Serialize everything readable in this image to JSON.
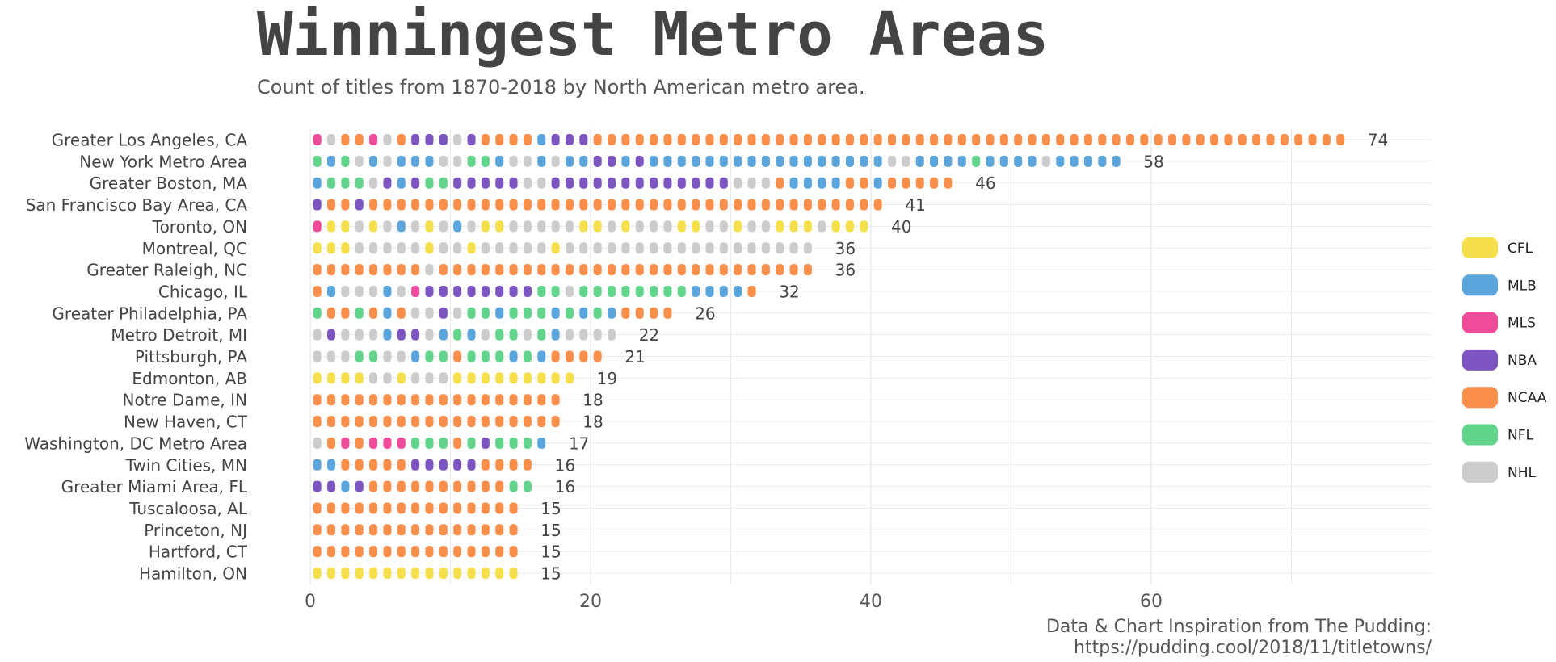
{
  "title": "Winningest Metro Areas",
  "subtitle": "Count of titles from 1870-2018 by North American metro area.",
  "caption": {
    "line1": "Data & Chart Inspiration from The Pudding:",
    "line2": "https://pudding.cool/2018/11/titletowns/"
  },
  "chart_data": {
    "type": "bar",
    "xlim": [
      0,
      80
    ],
    "x_ticks": [
      0,
      20,
      40,
      60
    ],
    "grid": true,
    "legend_position": "right",
    "legend": [
      {
        "name": "CFL",
        "color": "#f5df4d"
      },
      {
        "name": "MLB",
        "color": "#5aa5dc"
      },
      {
        "name": "MLS",
        "color": "#ee4b9a"
      },
      {
        "name": "NBA",
        "color": "#7d55c0"
      },
      {
        "name": "NCAA",
        "color": "#f98f4a"
      },
      {
        "name": "NFL",
        "color": "#62d48c"
      },
      {
        "name": "NHL",
        "color": "#cccccc"
      }
    ],
    "categories": [
      "Greater Los Angeles, CA",
      "New York Metro Area",
      "Greater Boston, MA",
      "San Francisco Bay Area, CA",
      "Toronto, ON",
      "Montreal, QC",
      "Greater Raleigh, NC",
      "Chicago, IL",
      "Greater Philadelphia, PA",
      "Metro Detroit, MI",
      "Pittsburgh, PA",
      "Edmonton, AB",
      "Notre Dame, IN",
      "New Haven, CT",
      "Washington, DC Metro Area",
      "Twin Cities, MN",
      "Greater Miami Area, FL",
      "Tuscaloosa, AL",
      "Princeton, NJ",
      "Hartford, CT",
      "Hamilton, ON"
    ],
    "values": [
      74,
      58,
      46,
      41,
      40,
      36,
      36,
      32,
      26,
      22,
      21,
      19,
      18,
      18,
      17,
      16,
      16,
      15,
      15,
      15,
      15
    ],
    "title_sequences": [
      "MLS NHL NCAA NCAA MLS NHL NCAA NBA NBA NBA NHL NBA NCAA NCAA NCAA NCAA MLB NBA NBA NBA NCAA NCAA NCAA NCAA NCAA NCAA NCAA NCAA NCAA NCAA NCAA NCAA NCAA NCAA NCAA NCAA NCAA NCAA NCAA NCAA NCAA NCAA NCAA NCAA NCAA NCAA NCAA NCAA NCAA NCAA NCAA NCAA NCAA NCAA NCAA NCAA NCAA NCAA NCAA NCAA NCAA NCAA NCAA NCAA NCAA NCAA NCAA NCAA NCAA NCAA NCAA NCAA NCAA NCAA",
      "NFL MLB NFL NHL MLB NHL MLB MLB MLB NHL NHL NFL NFL MLB NHL NHL MLB NHL MLB MLB NBA NBA MLB NBA MLB MLB MLB MLB MLB MLB MLB MLB MLB MLB MLB MLB MLB MLB MLB MLB MLB NHL NHL MLB MLB MLB MLB NFL MLB MLB MLB MLB NHL MLB MLB MLB MLB MLB",
      "MLB NFL NFL NFL NHL NBA MLB NBA NFL NFL NBA NBA NBA NBA NBA NHL NHL NBA NBA NBA NBA NBA NBA NBA NBA NBA NBA NBA NBA NBA NHL NHL NHL NCAA MLB MLB MLB MLB NCAA NCAA MLB NCAA NCAA NCAA NCAA NCAA",
      "NBA NCAA NCAA NBA NCAA NCAA NCAA NCAA NCAA NCAA NCAA NCAA NCAA NCAA NCAA NCAA NCAA NCAA NCAA NCAA NCAA NCAA NCAA NCAA NCAA NCAA NCAA NCAA NCAA NCAA NCAA NCAA NCAA NCAA NCAA NCAA NCAA NCAA NCAA NCAA NCAA",
      "MLS CFL CFL NHL CFL NHL MLB NHL CFL NHL MLB NHL CFL CFL NHL NHL NHL NHL NHL CFL CFL NHL CFL NHL NHL NHL CFL CFL NHL NHL CFL NHL NHL CFL CFL CFL NHL CFL CFL CFL",
      "CFL CFL CFL NHL NHL NHL NHL NHL CFL NHL NHL CFL NHL NHL NHL NHL NHL CFL NHL NHL NHL NHL NHL NHL NHL NHL NHL NHL NHL NHL NHL NHL NHL NHL NHL NHL",
      "NCAA NCAA NCAA NCAA NCAA NCAA NCAA NCAA NHL NCAA NCAA NCAA NCAA NCAA NCAA NCAA NCAA NCAA NCAA NCAA NCAA NCAA NCAA NCAA NCAA NCAA NCAA NCAA NCAA NCAA NCAA NCAA NCAA NCAA NCAA NCAA",
      "NCAA MLB NHL NHL NHL MLB NHL MLS NBA NBA NBA NBA NBA NBA NBA NBA NFL NFL NHL NFL NFL NFL NFL NFL NFL NFL NFL MLB MLB MLB MLB NCAA",
      "NFL NCAA NCAA NFL NCAA MLB NCAA NHL NHL NBA NHL NFL NFL MLB NFL NFL NFL MLB NFL MLB NFL MLB NCAA NCAA NCAA NCAA",
      "NHL NBA NHL NHL NHL MLB NBA NBA NHL MLB NFL MLB NHL NFL NFL NHL NFL MLB NHL NHL NHL NHL",
      "NHL NHL NHL NFL NFL NHL NHL MLB NFL NFL NCAA NFL NFL NFL MLB NFL MLB NCAA NCAA NCAA NCAA",
      "CFL CFL CFL CFL NHL NHL CFL NHL NHL NHL CFL CFL CFL CFL CFL CFL CFL CFL CFL",
      "NCAA NCAA NCAA NCAA NCAA NCAA NCAA NCAA NCAA NCAA NCAA NCAA NCAA NCAA NCAA NCAA NCAA NCAA",
      "NCAA NCAA NCAA NCAA NCAA NCAA NCAA NCAA NCAA NCAA NCAA NCAA NCAA NCAA NCAA NCAA NCAA NCAA",
      "NHL NCAA MLS NCAA MLS MLS MLS NFL NFL NFL NCAA NFL NBA NFL NFL NFL MLB",
      "MLB MLB NCAA NCAA NCAA NCAA NCAA NBA NBA NBA NBA NBA NCAA NCAA NCAA NCAA",
      "NBA NBA MLB NBA NCAA NCAA NCAA NCAA NCAA NCAA NCAA NCAA NCAA NCAA NFL NFL",
      "NCAA NCAA NCAA NCAA NCAA NCAA NCAA NCAA NCAA NCAA NCAA NCAA NCAA NCAA NCAA",
      "NCAA NCAA NCAA NCAA NCAA NCAA NCAA NCAA NCAA NCAA NCAA NCAA NCAA NCAA NCAA",
      "NCAA NCAA NCAA NCAA NCAA NCAA NCAA NCAA NCAA NCAA NCAA NCAA NCAA NCAA NCAA",
      "CFL CFL CFL CFL CFL CFL CFL CFL CFL CFL CFL CFL CFL CFL CFL"
    ]
  }
}
